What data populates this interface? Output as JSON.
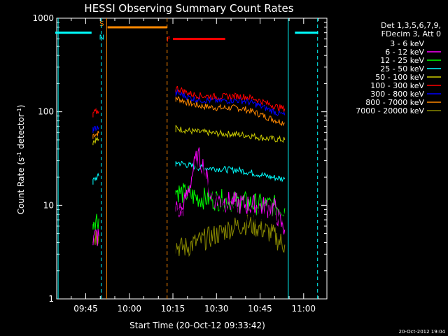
{
  "chart_data": {
    "type": "line",
    "title": "HESSI Observing Summary Count Rates",
    "xlabel": "Start Time (20-Oct-12 09:33:42)",
    "ylabel_main": "Count Rate (s",
    "ylabel_sup1": "-1",
    "ylabel_mid": " detector",
    "ylabel_sup2": "-1",
    "ylabel_end": ")",
    "ylog": true,
    "xlim": [
      "09:35",
      "11:08"
    ],
    "ylim": [
      1,
      1000
    ],
    "x_ticks": [
      "09:45",
      "10:00",
      "10:15",
      "10:30",
      "10:45",
      "11:00"
    ],
    "y_ticks": [
      {
        "value": 1,
        "label": "1"
      },
      {
        "value": 10,
        "label": "10"
      },
      {
        "value": 100,
        "label": "100"
      },
      {
        "value": 1000,
        "label": "1000"
      }
    ],
    "legend_header": [
      "Det 1,3,5,6,7,9,",
      "FDecim 3, Att 0"
    ],
    "legend_placement": "right",
    "series": [
      {
        "name": "3 - 6 keV",
        "color": "#000000",
        "segments": [
          [
            [
              "09:47.5",
              2.6
            ],
            [
              "09:48",
              3.0
            ],
            [
              "09:48.5",
              3.4
            ],
            [
              "09:49",
              2.8
            ],
            [
              "09:49.5",
              3.2
            ]
          ],
          [
            [
              "10:16",
              8.5
            ],
            [
              "10:18",
              7.0
            ],
            [
              "10:20",
              10
            ],
            [
              "10:22",
              18
            ],
            [
              "10:23",
              24
            ],
            [
              "10:25",
              24
            ],
            [
              "10:26",
              22
            ],
            [
              "10:27",
              16
            ],
            [
              "10:28",
              12
            ],
            [
              "10:30",
              10
            ],
            [
              "10:33",
              9
            ],
            [
              "10:36",
              8.5
            ],
            [
              "10:39",
              8.2
            ],
            [
              "10:42",
              8.0
            ],
            [
              "10:45",
              7.8
            ],
            [
              "10:48",
              8.5
            ],
            [
              "10:50",
              8.0
            ],
            [
              "10:52",
              7.6
            ],
            [
              "10:53.5",
              7.5
            ]
          ]
        ]
      },
      {
        "name": "6 - 12 keV",
        "color": "#ff00ff",
        "segments": [
          [
            [
              "09:47.5",
              4.2
            ],
            [
              "09:48",
              4.5
            ],
            [
              "09:48.5",
              4.8
            ],
            [
              "09:49",
              4.5
            ],
            [
              "09:49.5",
              4.7
            ]
          ],
          [
            [
              "10:16",
              9.5
            ],
            [
              "10:18",
              8.5
            ],
            [
              "10:20",
              13
            ],
            [
              "10:22",
              24
            ],
            [
              "10:23",
              30
            ],
            [
              "10:24",
              32
            ],
            [
              "10:25",
              28
            ],
            [
              "10:26",
              24
            ],
            [
              "10:27",
              17
            ],
            [
              "10:28",
              13
            ],
            [
              "10:30",
              11.5
            ],
            [
              "10:33",
              11
            ],
            [
              "10:36",
              10.5
            ],
            [
              "10:39",
              10.2
            ],
            [
              "10:42",
              10
            ],
            [
              "10:45",
              9.7
            ],
            [
              "10:48",
              9.5
            ],
            [
              "10:50",
              9.3
            ],
            [
              "10:52",
              6.5
            ],
            [
              "10:53.5",
              5.5
            ]
          ]
        ]
      },
      {
        "name": "12 - 25 keV",
        "color": "#00ff00",
        "segments": [
          [
            [
              "09:47.5",
              7.0
            ],
            [
              "09:48",
              7.1
            ],
            [
              "09:48.5",
              7.2
            ],
            [
              "09:49",
              7.1
            ],
            [
              "09:49.5",
              7.2
            ]
          ],
          [
            [
              "10:16",
              14.5
            ],
            [
              "10:18",
              13.5
            ],
            [
              "10:20",
              13
            ],
            [
              "10:22",
              12.5
            ],
            [
              "10:24",
              12
            ],
            [
              "10:27",
              11.8
            ],
            [
              "10:30",
              11.5
            ],
            [
              "10:33",
              11.2
            ],
            [
              "10:36",
              11
            ],
            [
              "10:39",
              10.8
            ],
            [
              "10:42",
              10.5
            ],
            [
              "10:45",
              10.2
            ],
            [
              "10:48",
              10
            ],
            [
              "10:50",
              9.8
            ],
            [
              "10:52",
              9.5
            ],
            [
              "10:53.5",
              9.3
            ]
          ]
        ]
      },
      {
        "name": "25 - 50 keV",
        "color": "#00ffff",
        "segments": [
          [
            [
              "09:47.5",
              18.5
            ],
            [
              "09:48",
              19
            ],
            [
              "09:48.5",
              19.5
            ],
            [
              "09:49",
              20
            ],
            [
              "09:49.5",
              20.5
            ]
          ],
          [
            [
              "10:16",
              29
            ],
            [
              "10:18",
              28
            ],
            [
              "10:20",
              27
            ],
            [
              "10:22",
              26
            ],
            [
              "10:25",
              25
            ],
            [
              "10:28",
              25
            ],
            [
              "10:31",
              24.5
            ],
            [
              "10:34",
              24
            ],
            [
              "10:37",
              24
            ],
            [
              "10:40",
              23
            ],
            [
              "10:43",
              22
            ],
            [
              "10:46",
              21
            ],
            [
              "10:49",
              20
            ],
            [
              "10:52",
              19.5
            ],
            [
              "10:53.5",
              19
            ]
          ]
        ]
      },
      {
        "name": "50 - 100 keV",
        "color": "#cccc00",
        "segments": [
          [
            [
              "09:47.5",
              49
            ],
            [
              "09:48",
              49.5
            ],
            [
              "09:48.5",
              50
            ],
            [
              "09:49",
              50.5
            ],
            [
              "09:49.5",
              51
            ]
          ],
          [
            [
              "10:16",
              67
            ],
            [
              "10:18",
              65
            ],
            [
              "10:20",
              63
            ],
            [
              "10:23",
              61
            ],
            [
              "10:26",
              60
            ],
            [
              "10:29",
              59
            ],
            [
              "10:32",
              58
            ],
            [
              "10:35",
              58
            ],
            [
              "10:38",
              57
            ],
            [
              "10:41",
              56
            ],
            [
              "10:44",
              54
            ],
            [
              "10:47",
              52
            ],
            [
              "10:50",
              51
            ],
            [
              "10:53.5",
              50
            ]
          ]
        ]
      },
      {
        "name": "100 - 300 keV",
        "color": "#ff0000",
        "segments": [
          [
            [
              "09:47.5",
              97
            ],
            [
              "09:48",
              98
            ],
            [
              "09:48.5",
              99
            ],
            [
              "09:49",
              100
            ],
            [
              "09:49.5",
              101
            ]
          ],
          [
            [
              "10:16",
              180
            ],
            [
              "10:18",
              170
            ],
            [
              "10:20",
              160
            ],
            [
              "10:22",
              153
            ],
            [
              "10:25",
              148
            ],
            [
              "10:28",
              146
            ],
            [
              "10:31",
              145
            ],
            [
              "10:34",
              146
            ],
            [
              "10:37",
              147
            ],
            [
              "10:40",
              145
            ],
            [
              "10:43",
              138
            ],
            [
              "10:46",
              128
            ],
            [
              "10:49",
              118
            ],
            [
              "10:51",
              112
            ],
            [
              "10:53.5",
              108
            ]
          ]
        ]
      },
      {
        "name": "300 - 800 keV",
        "color": "#0000ff",
        "segments": [
          [
            [
              "09:47.5",
              66
            ],
            [
              "09:48",
              66.5
            ],
            [
              "09:48.5",
              67
            ],
            [
              "09:49",
              67.5
            ],
            [
              "09:49.5",
              68
            ]
          ],
          [
            [
              "10:16",
              162
            ],
            [
              "10:18",
              152
            ],
            [
              "10:20",
              145
            ],
            [
              "10:22",
              138
            ],
            [
              "10:25",
              134
            ],
            [
              "10:28",
              132
            ],
            [
              "10:31",
              131
            ],
            [
              "10:34",
              132
            ],
            [
              "10:37",
              133
            ],
            [
              "10:40",
              130
            ],
            [
              "10:43",
              122
            ],
            [
              "10:46",
              112
            ],
            [
              "10:49",
              103
            ],
            [
              "10:51",
              97
            ],
            [
              "10:53.5",
              92
            ]
          ]
        ]
      },
      {
        "name": "800 - 7000 keV",
        "color": "#ff8800",
        "segments": [
          [
            [
              "09:47.5",
              57
            ],
            [
              "09:48",
              57.5
            ],
            [
              "09:48.5",
              58
            ],
            [
              "09:49",
              58.5
            ],
            [
              "09:49.5",
              59
            ]
          ],
          [
            [
              "10:16",
              142
            ],
            [
              "10:18",
              133
            ],
            [
              "10:20",
              126
            ],
            [
              "10:22",
              120
            ],
            [
              "10:25",
              115
            ],
            [
              "10:28",
              112
            ],
            [
              "10:31",
              110
            ],
            [
              "10:34",
              110
            ],
            [
              "10:37",
              110
            ],
            [
              "10:40",
              106
            ],
            [
              "10:43",
              99
            ],
            [
              "10:46",
              91
            ],
            [
              "10:49",
              84
            ],
            [
              "10:51",
              80
            ],
            [
              "10:53.5",
              76
            ]
          ]
        ]
      },
      {
        "name": "7000 - 20000 keV",
        "color": "#888800",
        "segments": [
          [
            [
              "09:47.5",
              4.5
            ],
            [
              "09:48",
              4.6
            ],
            [
              "09:48.5",
              4.8
            ],
            [
              "09:49",
              4.7
            ],
            [
              "09:49.5",
              4.9
            ]
          ],
          [
            [
              "10:16",
              3.8
            ],
            [
              "10:18",
              3.5
            ],
            [
              "10:20",
              3.6
            ],
            [
              "10:22",
              3.9
            ],
            [
              "10:25",
              4.2
            ],
            [
              "10:28",
              4.6
            ],
            [
              "10:31",
              5.0
            ],
            [
              "10:34",
              5.6
            ],
            [
              "10:37",
              6.0
            ],
            [
              "10:40",
              6.3
            ],
            [
              "10:43",
              6.0
            ],
            [
              "10:46",
              5.5
            ],
            [
              "10:49",
              5.0
            ],
            [
              "10:51",
              4.3
            ],
            [
              "10:53.5",
              3.8
            ]
          ]
        ]
      }
    ],
    "flags": [
      {
        "label": "S",
        "color": "#ff8800",
        "x": "09:50.5",
        "y": 800,
        "segment": [
          "09:52.5",
          "10:13"
        ]
      },
      {
        "label": "N",
        "color": "#00ffff",
        "x": "09:50.5",
        "y": 700,
        "segments": [
          [
            "09:34.5",
            "09:47"
          ],
          [
            "10:57",
            "11:05"
          ]
        ]
      },
      {
        "label": "F",
        "color": "#ff0000",
        "x": "10:13.5",
        "y": 600,
        "segment": [
          "10:15",
          "10:33"
        ]
      }
    ],
    "vlines": [
      {
        "x": "09:35.5",
        "color": "#00ffff",
        "style": "solid"
      },
      {
        "x": "09:50.3",
        "color": "#00ffff",
        "style": "dashed"
      },
      {
        "x": "09:52.2",
        "color": "#ff8800",
        "style": "solid"
      },
      {
        "x": "10:13",
        "color": "#ff8800",
        "style": "dashed"
      },
      {
        "x": "10:54.7",
        "color": "#00ffff",
        "style": "solid"
      },
      {
        "x": "11:04.8",
        "color": "#00ffff",
        "style": "dashed"
      }
    ],
    "timestamp": "20-Oct-2012 19:04"
  }
}
